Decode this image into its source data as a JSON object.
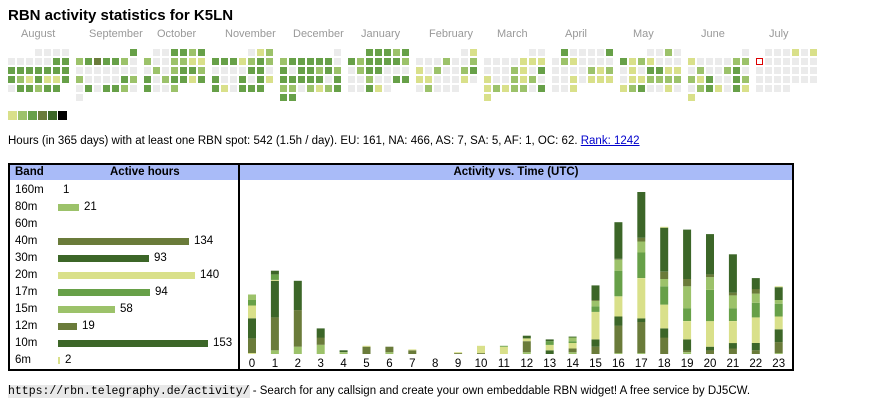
{
  "title": "RBN activity statistics for K5LN",
  "colors": {
    "empty": "#ebebeb",
    "levels": [
      "#ebebeb",
      "#d9e08a",
      "#9cc26a",
      "#67a048",
      "#6a7b3a",
      "#3c6628",
      "#000000"
    ],
    "header_bg": "#a9bbf8",
    "link": "#0000cc",
    "today_outline": "#dd0000"
  },
  "calendar": {
    "months": [
      {
        "label": "August",
        "weeks": [
          [
            null,
            null,
            null,
            0,
            0,
            0,
            0
          ],
          [
            0,
            0,
            0,
            0,
            0,
            3,
            3
          ],
          [
            3,
            3,
            3,
            3,
            3,
            3,
            3
          ],
          [
            3,
            2,
            1,
            3,
            1,
            1,
            3
          ],
          [
            0,
            3,
            3,
            2,
            3,
            3,
            null
          ]
        ]
      },
      {
        "label": "September",
        "weeks": [
          [
            null,
            null,
            null,
            null,
            null,
            null,
            3
          ],
          [
            2,
            3,
            4,
            3,
            3,
            2,
            0
          ],
          [
            0,
            0,
            0,
            0,
            0,
            0,
            0
          ],
          [
            2,
            0,
            0,
            0,
            0,
            3,
            2
          ],
          [
            0,
            3,
            0,
            3,
            3,
            2,
            0
          ],
          [
            0,
            null,
            null,
            null,
            null,
            null,
            null
          ]
        ]
      },
      {
        "label": "October",
        "weeks": [
          [
            null,
            0,
            0,
            3,
            3,
            2,
            3
          ],
          [
            2,
            0,
            0,
            2,
            2,
            1,
            1
          ],
          [
            0,
            2,
            0,
            2,
            3,
            3,
            2
          ],
          [
            3,
            0,
            2,
            3,
            3,
            1,
            3
          ],
          [
            3,
            0,
            0,
            2,
            null,
            null,
            null
          ]
        ]
      },
      {
        "label": "November",
        "weeks": [
          [
            null,
            null,
            null,
            null,
            0,
            1,
            2
          ],
          [
            3,
            3,
            3,
            1,
            2,
            3,
            2
          ],
          [
            0,
            0,
            0,
            0,
            3,
            3,
            0
          ],
          [
            3,
            0,
            0,
            3,
            0,
            3,
            1
          ],
          [
            3,
            1,
            0,
            3,
            3,
            3,
            null
          ]
        ]
      },
      {
        "label": "December",
        "weeks": [
          [
            null,
            null,
            null,
            null,
            null,
            null,
            0
          ],
          [
            2,
            3,
            3,
            3,
            3,
            3,
            0
          ],
          [
            3,
            0,
            3,
            3,
            2,
            3,
            2
          ],
          [
            3,
            3,
            3,
            3,
            3,
            0,
            3
          ],
          [
            2,
            2,
            0,
            2,
            1,
            2,
            3
          ],
          [
            3,
            3,
            null,
            null,
            null,
            null,
            null
          ]
        ]
      },
      {
        "label": "January",
        "weeks": [
          [
            null,
            null,
            3,
            3,
            3,
            2,
            3
          ],
          [
            3,
            2,
            3,
            3,
            3,
            3,
            2
          ],
          [
            0,
            2,
            3,
            3,
            0,
            0,
            0
          ],
          [
            0,
            0,
            2,
            0,
            0,
            3,
            3
          ],
          [
            0,
            0,
            3,
            1,
            0,
            null,
            null
          ]
        ]
      },
      {
        "label": "February",
        "weeks": [
          [
            null,
            null,
            null,
            null,
            null,
            0,
            1
          ],
          [
            0,
            0,
            0,
            2,
            0,
            0,
            2
          ],
          [
            1,
            0,
            2,
            0,
            0,
            2,
            3
          ],
          [
            1,
            1,
            0,
            0,
            0,
            1,
            0
          ],
          [
            0,
            2,
            0,
            0,
            0,
            null,
            null
          ]
        ]
      },
      {
        "label": "March",
        "weeks": [
          [
            null,
            null,
            null,
            null,
            null,
            0,
            0
          ],
          [
            0,
            0,
            0,
            0,
            1,
            1,
            1
          ],
          [
            0,
            0,
            0,
            2,
            1,
            0,
            3
          ],
          [
            1,
            0,
            0,
            2,
            1,
            2,
            0
          ],
          [
            1,
            2,
            1,
            2,
            2,
            0,
            3
          ],
          [
            1,
            null,
            null,
            null,
            null,
            null,
            null
          ]
        ]
      },
      {
        "label": "April",
        "weeks": [
          [
            null,
            3,
            0,
            0,
            0,
            0,
            3
          ],
          [
            0,
            2,
            1,
            0,
            0,
            0,
            0
          ],
          [
            0,
            0,
            0,
            0,
            2,
            1,
            2
          ],
          [
            0,
            0,
            1,
            0,
            1,
            1,
            1
          ],
          [
            0,
            0,
            1,
            null,
            null,
            null,
            null
          ]
        ]
      },
      {
        "label": "May",
        "weeks": [
          [
            null,
            null,
            null,
            0,
            0,
            2,
            0
          ],
          [
            3,
            1,
            2,
            1,
            0,
            0,
            0
          ],
          [
            0,
            1,
            0,
            3,
            3,
            1,
            1
          ],
          [
            0,
            1,
            1,
            2,
            2,
            2,
            2
          ],
          [
            1,
            2,
            3,
            0,
            0,
            1,
            0
          ]
        ]
      },
      {
        "label": "June",
        "weeks": [
          [
            null,
            null,
            null,
            null,
            null,
            null,
            0
          ],
          [
            1,
            0,
            0,
            0,
            0,
            2,
            2
          ],
          [
            0,
            2,
            0,
            0,
            2,
            3,
            0
          ],
          [
            2,
            1,
            3,
            0,
            0,
            3,
            2
          ],
          [
            0,
            2,
            3,
            1,
            0,
            3,
            1
          ],
          [
            1,
            null,
            null,
            null,
            null,
            null,
            null
          ]
        ]
      },
      {
        "label": "July",
        "weeks": [
          [
            null,
            0,
            0,
            0,
            1,
            0,
            1
          ],
          [
            "today",
            0,
            0,
            0,
            0,
            0,
            0
          ],
          [
            0,
            0,
            0,
            0,
            0,
            0,
            0
          ],
          [
            0,
            0,
            0,
            0,
            0,
            0,
            0
          ],
          [
            0,
            0,
            0,
            0,
            null,
            null,
            null
          ]
        ]
      }
    ],
    "legend_levels": [
      1,
      2,
      3,
      4,
      5,
      6
    ]
  },
  "summary": {
    "text": "Hours (in 365 days) with at least one RBN spot: 542 (1.5h / day). EU: 161, NA: 466, AS: 7, SA: 5, AF: 1, OC: 62. ",
    "rank_link": "Rank: 1242"
  },
  "bands": {
    "header_band": "Band",
    "header_hours": "Active hours",
    "rows": [
      {
        "band": "160m",
        "hours": 1,
        "color": "#d9e08a"
      },
      {
        "band": "80m",
        "hours": 21,
        "color": "#9cc26a"
      },
      {
        "band": "60m",
        "hours": null,
        "color": "#ebebeb"
      },
      {
        "band": "40m",
        "hours": 134,
        "color": "#6a7b3a"
      },
      {
        "band": "30m",
        "hours": 93,
        "color": "#3c6628"
      },
      {
        "band": "20m",
        "hours": 140,
        "color": "#d9e08a"
      },
      {
        "band": "17m",
        "hours": 94,
        "color": "#67a048"
      },
      {
        "band": "15m",
        "hours": 58,
        "color": "#9cc26a"
      },
      {
        "band": "12m",
        "hours": 19,
        "color": "#6a7b3a"
      },
      {
        "band": "10m",
        "hours": 153,
        "color": "#3c6628"
      },
      {
        "band": "6m",
        "hours": 2,
        "color": "#d9e08a"
      }
    ]
  },
  "chart_data": {
    "type": "bar",
    "stacked": true,
    "title": "Activity vs. Time (UTC)",
    "xlabel": "",
    "ylabel": "",
    "categories": [
      "0",
      "1",
      "2",
      "3",
      "4",
      "5",
      "6",
      "7",
      "8",
      "9",
      "10",
      "11",
      "12",
      "13",
      "14",
      "15",
      "16",
      "17",
      "18",
      "19",
      "20",
      "21",
      "22",
      "23"
    ],
    "ylim": [
      0,
      90
    ],
    "grid": false,
    "legend": "none",
    "series": [
      {
        "name": "160m",
        "color": "#d9e08a",
        "values": [
          0.5,
          0,
          0,
          0,
          0,
          0,
          0,
          0,
          0,
          0,
          0,
          0,
          0,
          0,
          0,
          0,
          0,
          0,
          0,
          0,
          0,
          0,
          0,
          0
        ]
      },
      {
        "name": "80m",
        "color": "#9cc26a",
        "values": [
          0,
          2,
          4,
          5,
          1,
          0,
          1,
          0,
          0,
          0,
          0,
          0,
          1,
          0,
          1,
          0,
          0.5,
          0.5,
          0,
          1,
          0,
          0,
          0,
          0.5
        ]
      },
      {
        "name": "40m",
        "color": "#6a7b3a",
        "values": [
          8,
          18,
          20,
          4,
          0,
          4,
          3,
          2,
          0,
          0.5,
          0.5,
          0,
          6,
          0,
          2,
          4,
          15,
          17,
          9,
          1,
          2,
          3,
          2,
          6
        ]
      },
      {
        "name": "30m",
        "color": "#3c6628",
        "values": [
          11,
          20,
          0,
          0,
          0,
          0,
          0,
          0,
          0,
          0,
          0,
          0,
          0,
          2,
          0,
          4,
          5,
          2,
          5,
          6,
          2,
          3,
          4,
          7
        ]
      },
      {
        "name": "20m",
        "color": "#d9e08a",
        "values": [
          7,
          0.5,
          0,
          0,
          0,
          0.5,
          0,
          0.5,
          0,
          0.5,
          4,
          4,
          1.5,
          3,
          3,
          15,
          11,
          22,
          13,
          10,
          14,
          12,
          14,
          7
        ]
      },
      {
        "name": "17m",
        "color": "#67a048",
        "values": [
          3,
          3,
          0,
          0,
          0,
          0,
          0,
          0,
          0,
          0,
          0,
          0.5,
          0,
          2,
          1,
          3,
          14,
          14,
          10,
          7,
          17,
          7,
          8,
          7
        ]
      },
      {
        "name": "15m",
        "color": "#9cc26a",
        "values": [
          3,
          0,
          0,
          0,
          0,
          0,
          0,
          0,
          0,
          0,
          0,
          0,
          0,
          0,
          2,
          3,
          6,
          6,
          4,
          12,
          7,
          7,
          5,
          2
        ]
      },
      {
        "name": "12m",
        "color": "#6a7b3a",
        "values": [
          0,
          0,
          0,
          0,
          0,
          0,
          0,
          0,
          0,
          0,
          0,
          0,
          0,
          0,
          0,
          0.5,
          0.5,
          2,
          4,
          4,
          1.5,
          1.5,
          2.5,
          0
        ]
      },
      {
        "name": "10m",
        "color": "#3c6628",
        "values": [
          0,
          2,
          16,
          5,
          1,
          0,
          0,
          0,
          0,
          0,
          0,
          0,
          1.5,
          1,
          0.5,
          8,
          20,
          25,
          24,
          27,
          22,
          21,
          6,
          7
        ]
      },
      {
        "name": "6m",
        "color": "#d9e08a",
        "values": [
          0,
          0,
          0,
          0,
          0,
          0,
          0,
          0,
          0,
          0,
          0,
          0,
          0,
          0,
          0,
          0,
          0,
          0,
          0.5,
          0,
          0,
          0,
          0,
          0.5
        ]
      }
    ]
  },
  "footer": {
    "url_text": "https://rbn.telegraphy.de/activity/",
    "text": " - Search for any callsign and create your own embeddable RBN widget! A free service by DJ5CW."
  }
}
